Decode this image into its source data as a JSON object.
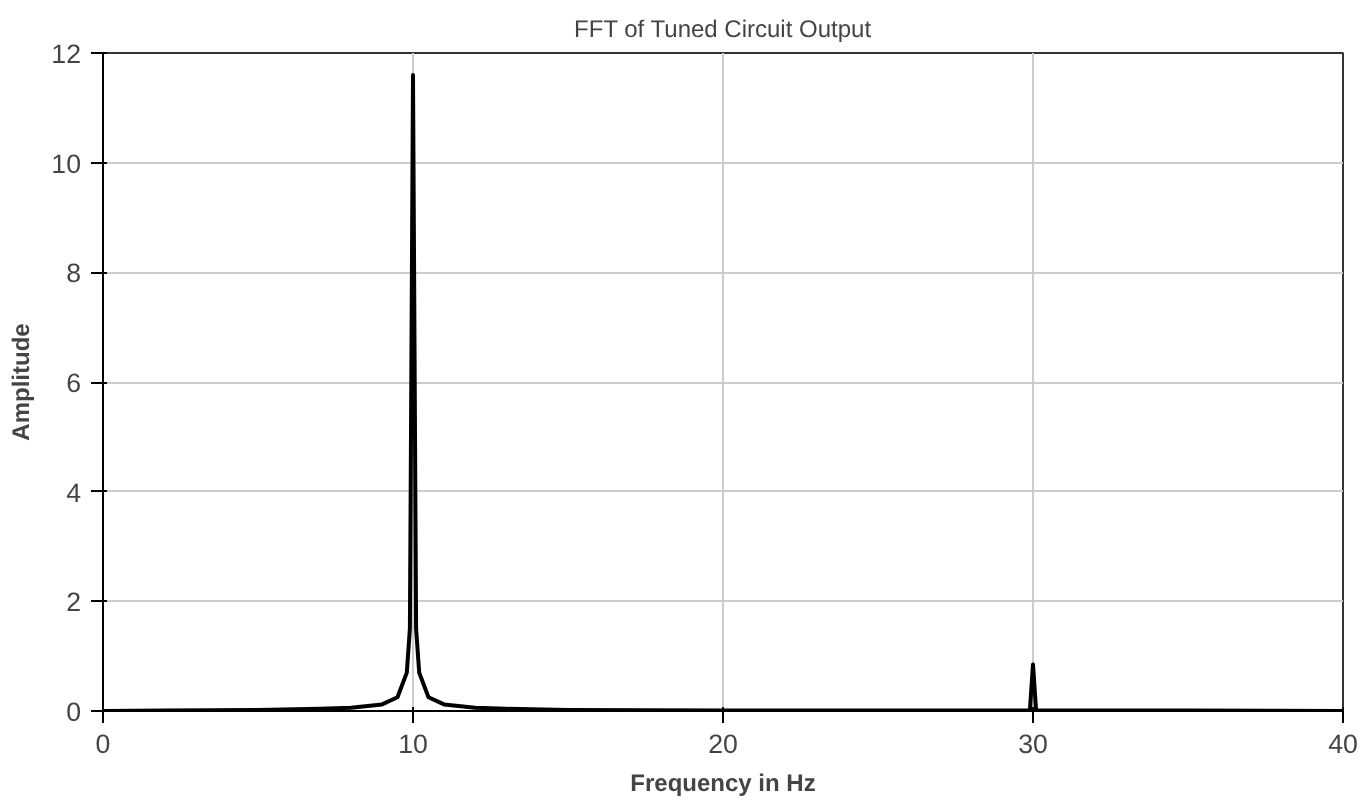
{
  "chart_data": {
    "type": "line",
    "title": "FFT of Tuned Circuit Output",
    "xlabel": "Frequency in Hz",
    "ylabel": "Amplitude",
    "x": [
      0,
      2,
      5,
      7,
      8,
      9,
      9.5,
      9.8,
      9.9,
      10,
      10.1,
      10.2,
      10.5,
      11,
      12,
      13,
      15,
      20,
      29.9,
      30,
      30.1,
      35,
      40
    ],
    "series": [
      {
        "color": "#000000",
        "values": [
          0,
          0.01,
          0.02,
          0.04,
          0.06,
          0.12,
          0.25,
          0.7,
          1.5,
          11.6,
          1.5,
          0.7,
          0.25,
          0.12,
          0.06,
          0.04,
          0.02,
          0.01,
          0.01,
          0.85,
          0.01,
          0.01,
          0
        ]
      }
    ],
    "xlim": [
      0,
      40
    ],
    "ylim": [
      0,
      12
    ],
    "xticks": [
      0,
      10,
      20,
      30,
      40
    ],
    "yticks": [
      0,
      2,
      4,
      6,
      8,
      10,
      12
    ],
    "grid": true,
    "marker": "none",
    "line_style": "solid"
  }
}
